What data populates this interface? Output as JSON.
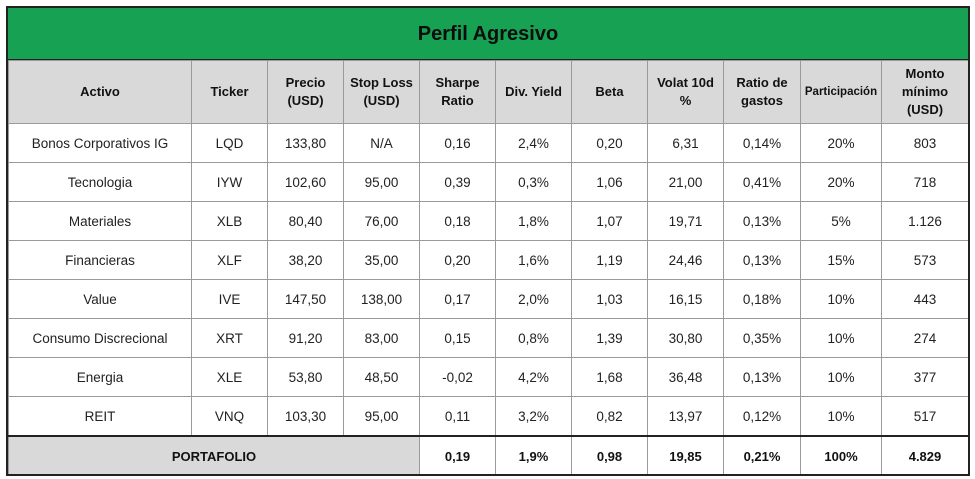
{
  "colors": {
    "title_bg": "#17a153",
    "header_bg": "#d9d9d9",
    "border": "#222222"
  },
  "title": "Perfil Agresivo",
  "headers": [
    {
      "key": "activo",
      "lines": [
        "Activo"
      ]
    },
    {
      "key": "ticker",
      "lines": [
        "Ticker"
      ]
    },
    {
      "key": "precio",
      "lines": [
        "Precio",
        "(USD)"
      ]
    },
    {
      "key": "stop",
      "lines": [
        "Stop Loss",
        "(USD)"
      ]
    },
    {
      "key": "sharpe",
      "lines": [
        "Sharpe",
        "Ratio"
      ]
    },
    {
      "key": "yield",
      "lines": [
        "Div. Yield"
      ]
    },
    {
      "key": "beta",
      "lines": [
        "Beta"
      ]
    },
    {
      "key": "volat",
      "lines": [
        "Volat 10d",
        "%"
      ]
    },
    {
      "key": "gastos",
      "lines": [
        "Ratio de",
        "gastos"
      ]
    },
    {
      "key": "particip",
      "lines": [
        "Participación"
      ]
    },
    {
      "key": "monto",
      "lines": [
        "Monto",
        "mínimo",
        "(USD)"
      ]
    }
  ],
  "rows": [
    [
      "Bonos Corporativos IG",
      "LQD",
      "133,80",
      "N/A",
      "0,16",
      "2,4%",
      "0,20",
      "6,31",
      "0,14%",
      "20%",
      "803"
    ],
    [
      "Tecnologia",
      "IYW",
      "102,60",
      "95,00",
      "0,39",
      "0,3%",
      "1,06",
      "21,00",
      "0,41%",
      "20%",
      "718"
    ],
    [
      "Materiales",
      "XLB",
      "80,40",
      "76,00",
      "0,18",
      "1,8%",
      "1,07",
      "19,71",
      "0,13%",
      "5%",
      "1.126"
    ],
    [
      "Financieras",
      "XLF",
      "38,20",
      "35,00",
      "0,20",
      "1,6%",
      "1,19",
      "24,46",
      "0,13%",
      "15%",
      "573"
    ],
    [
      "Value",
      "IVE",
      "147,50",
      "138,00",
      "0,17",
      "2,0%",
      "1,03",
      "16,15",
      "0,18%",
      "10%",
      "443"
    ],
    [
      "Consumo Discrecional",
      "XRT",
      "91,20",
      "83,00",
      "0,15",
      "0,8%",
      "1,39",
      "30,80",
      "0,35%",
      "10%",
      "274"
    ],
    [
      "Energia",
      "XLE",
      "53,80",
      "48,50",
      "-0,02",
      "4,2%",
      "1,68",
      "36,48",
      "0,13%",
      "10%",
      "377"
    ],
    [
      "REIT",
      "VNQ",
      "103,30",
      "95,00",
      "0,11",
      "3,2%",
      "0,82",
      "13,97",
      "0,12%",
      "10%",
      "517"
    ]
  ],
  "total": {
    "label": "PORTAFOLIO",
    "values": [
      "0,19",
      "1,9%",
      "0,98",
      "19,85",
      "0,21%",
      "100%",
      "4.829"
    ]
  }
}
